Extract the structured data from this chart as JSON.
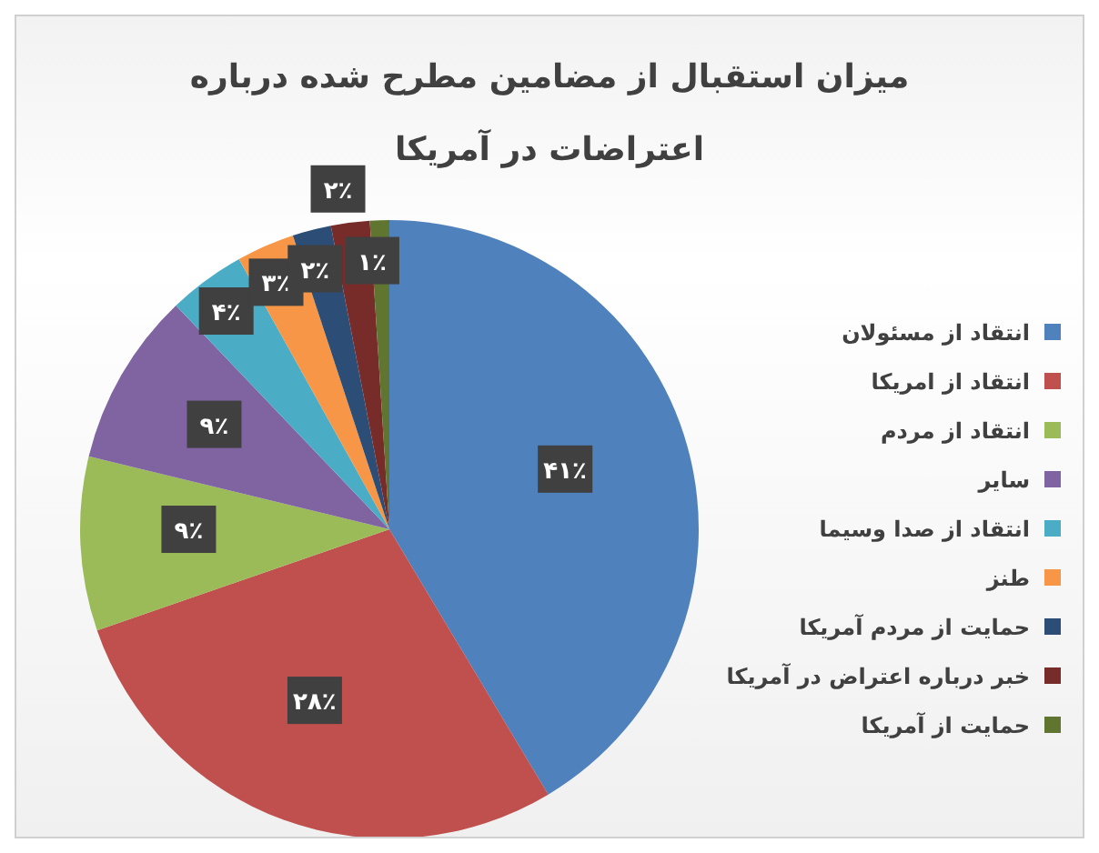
{
  "chart_data": {
    "type": "pie",
    "title": "میزان استقبال از مضامین مطرح شده درباره اعتراضات در آمریکا",
    "categories": [
      "انتقاد از مسئولان",
      "انتقاد از امریکا",
      "انتقاد از مردم",
      "سایر",
      "انتقاد از صدا وسیما",
      "طنز",
      "حمایت از مردم آمریکا",
      "خبر درباره اعتراض در آمریکا",
      "حمایت از آمریکا"
    ],
    "values": [
      41,
      28,
      9,
      9,
      4,
      3,
      2,
      2,
      1
    ],
    "colors": [
      "#4f81bd",
      "#c0504d",
      "#9bbb59",
      "#8064a2",
      "#4bacc6",
      "#f79646",
      "#2c4d75",
      "#772c2a",
      "#5f7530"
    ],
    "value_labels": [
      "۴۱٪",
      "۲۸٪",
      "۹٪",
      "۹٪",
      "۴٪",
      "۳٪",
      "۲٪",
      "۲٪",
      "۱٪"
    ],
    "legend": "right"
  }
}
